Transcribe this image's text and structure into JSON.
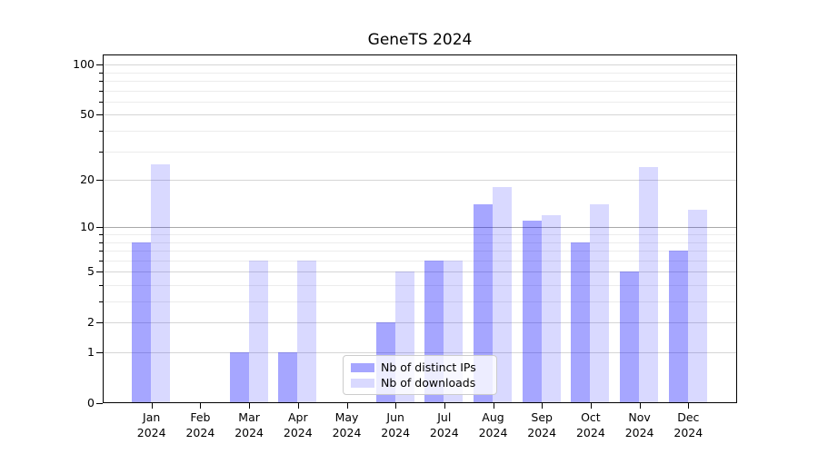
{
  "chart_data": {
    "type": "bar",
    "title": "GeneTS 2024",
    "categories": [
      "Jan",
      "Feb",
      "Mar",
      "Apr",
      "May",
      "Jun",
      "Jul",
      "Aug",
      "Sep",
      "Oct",
      "Nov",
      "Dec"
    ],
    "category_year": "2024",
    "series": [
      {
        "name": "Nb of distinct IPs",
        "base_color": "#0000ff",
        "alpha": 0.35,
        "solid_equivalent": "#a6a6ff",
        "values": [
          8,
          0,
          1,
          1,
          0,
          2,
          6,
          14,
          11,
          8,
          5,
          7
        ]
      },
      {
        "name": "Nb of downloads",
        "base_color": "#0000ff",
        "alpha": 0.15,
        "solid_equivalent": "#d9d9ff",
        "values": [
          25,
          0,
          6,
          6,
          0,
          5,
          6,
          18,
          12,
          14,
          24,
          13
        ]
      }
    ],
    "yscale": "log10(1+x)",
    "yticks": [
      0,
      1,
      2,
      5,
      10,
      20,
      50,
      100
    ],
    "minor_yticks": [
      3,
      4,
      6,
      7,
      8,
      9,
      30,
      40,
      60,
      70,
      80,
      90
    ],
    "ylim": [
      0,
      115
    ],
    "xlabel": "",
    "ylabel": "",
    "grid": "major+minor",
    "legend": {
      "position": "lower center",
      "entries": [
        "Nb of distinct IPs",
        "Nb of downloads"
      ]
    }
  }
}
